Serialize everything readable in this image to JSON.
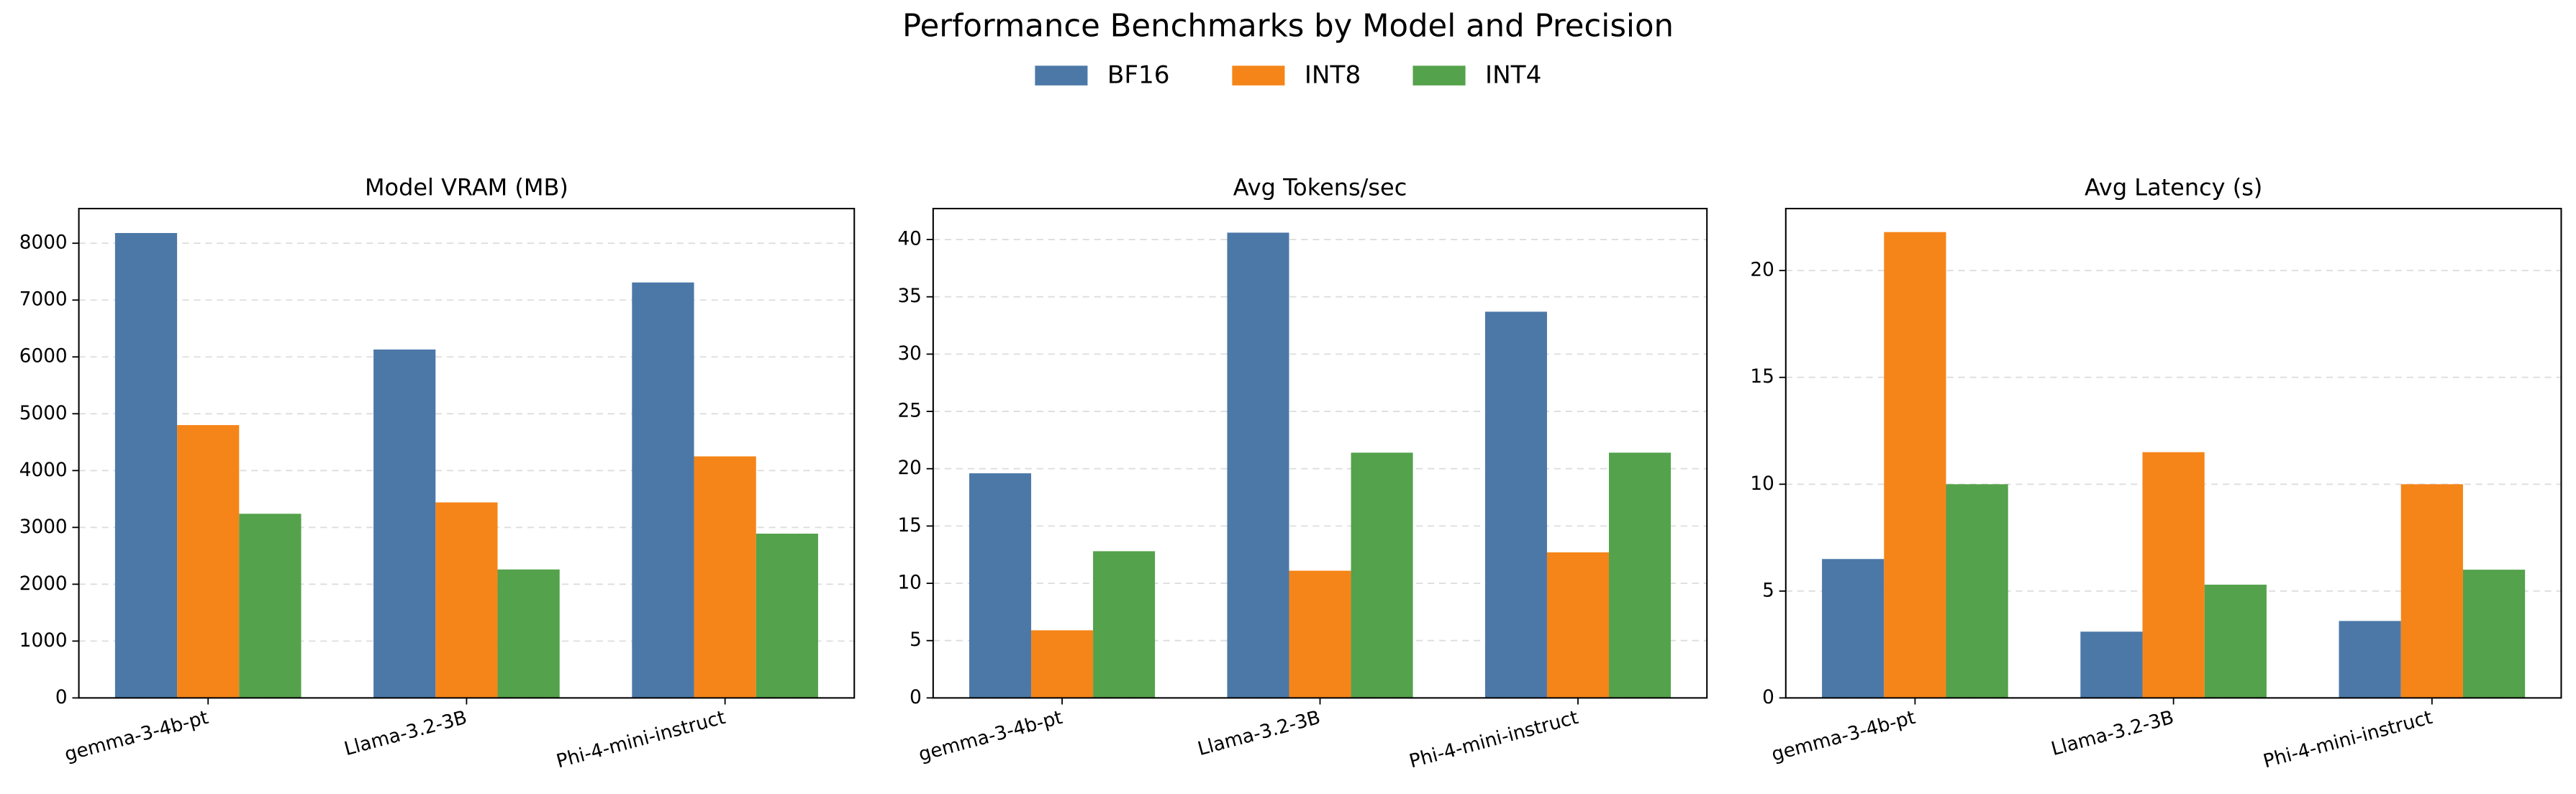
{
  "title": "Performance Benchmarks by Model and Precision",
  "chart_data": [
    {
      "type": "bar",
      "title": "Model VRAM (MB)",
      "categories": [
        "gemma-3-4b-pt",
        "Llama-3.2-3B",
        "Phi-4-mini-instruct"
      ],
      "series": [
        {
          "name": "BF16",
          "color": "#4c78a8",
          "values": [
            8180,
            6130,
            7310
          ]
        },
        {
          "name": "INT8",
          "color": "#f58518",
          "values": [
            4800,
            3440,
            4250
          ]
        },
        {
          "name": "INT4",
          "color": "#54a24b",
          "values": [
            3240,
            2260,
            2890
          ]
        }
      ],
      "ylim": [
        0,
        8610
      ],
      "yticks": [
        0,
        1000,
        2000,
        3000,
        4000,
        5000,
        6000,
        7000,
        8000
      ],
      "grid": true
    },
    {
      "type": "bar",
      "title": "Avg Tokens/sec",
      "categories": [
        "gemma-3-4b-pt",
        "Llama-3.2-3B",
        "Phi-4-mini-instruct"
      ],
      "series": [
        {
          "name": "BF16",
          "color": "#4c78a8",
          "values": [
            19.6,
            40.6,
            33.7
          ]
        },
        {
          "name": "INT8",
          "color": "#f58518",
          "values": [
            5.9,
            11.1,
            12.7
          ]
        },
        {
          "name": "INT4",
          "color": "#54a24b",
          "values": [
            12.8,
            21.4,
            21.4
          ]
        }
      ],
      "ylim": [
        0,
        42.7
      ],
      "yticks": [
        0,
        5,
        10,
        15,
        20,
        25,
        30,
        35,
        40
      ],
      "grid": true
    },
    {
      "type": "bar",
      "title": "Avg Latency (s)",
      "categories": [
        "gemma-3-4b-pt",
        "Llama-3.2-3B",
        "Phi-4-mini-instruct"
      ],
      "series": [
        {
          "name": "BF16",
          "color": "#4c78a8",
          "values": [
            6.5,
            3.1,
            3.6
          ]
        },
        {
          "name": "INT8",
          "color": "#f58518",
          "values": [
            21.8,
            11.5,
            10.0
          ]
        },
        {
          "name": "INT4",
          "color": "#54a24b",
          "values": [
            10.0,
            5.3,
            6.0
          ]
        }
      ],
      "ylim": [
        0,
        22.9
      ],
      "yticks": [
        0,
        5,
        10,
        15,
        20
      ],
      "grid": true
    }
  ]
}
